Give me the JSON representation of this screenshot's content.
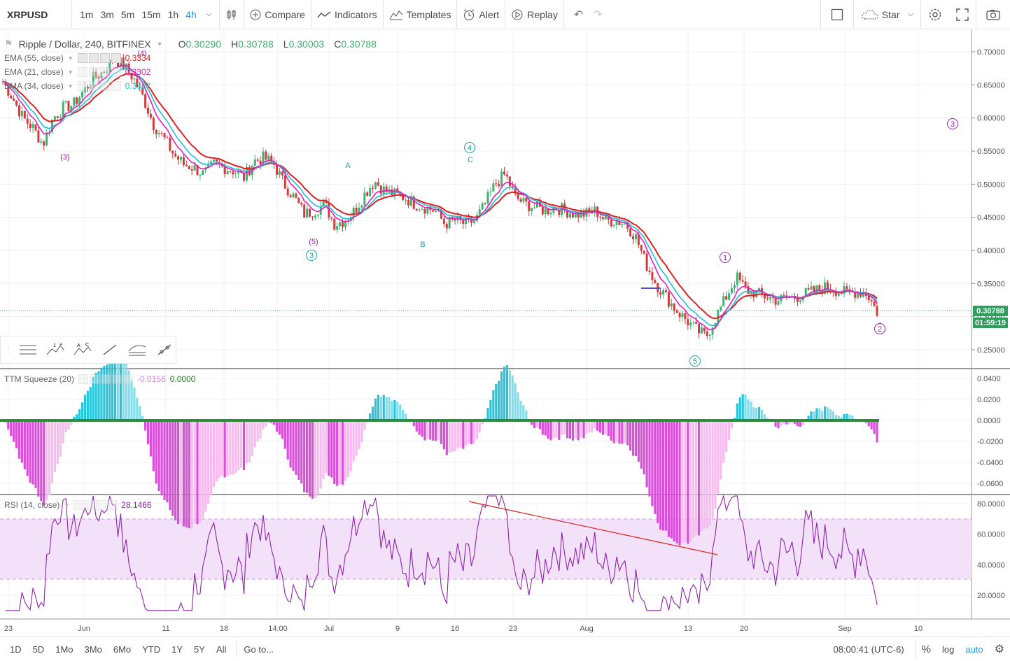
{
  "symbol": "XRPUSD",
  "intervals": [
    "1m",
    "3m",
    "5m",
    "15m",
    "1h",
    "4h"
  ],
  "active_interval": "4h",
  "toolbar": {
    "compare": "Compare",
    "indicators": "Indicators",
    "templates": "Templates",
    "alert": "Alert",
    "replay": "Replay",
    "star": "Star"
  },
  "legend": {
    "title": "Ripple / Dollar, 240, BITFINEX",
    "o_label": "O",
    "o": "0.30290",
    "h_label": "H",
    "h": "0.30788",
    "l_label": "L",
    "l": "0.30003",
    "c_label": "C",
    "c": "0.30788"
  },
  "ema": [
    {
      "label": "EMA (55, close)",
      "value": "0.3334",
      "color": "#e02020"
    },
    {
      "label": "EMA (21, close)",
      "value": "0.3302",
      "color": "#e020c0"
    },
    {
      "label": "EMA (34, close)",
      "value": "0.3327",
      "color": "#20c0d8"
    }
  ],
  "ttm": {
    "label": "TTM Squeeze (20)",
    "value1": "-0.0156",
    "value2": "0.0000"
  },
  "rsi": {
    "label": "RSI (14, close)",
    "value": "28.1466"
  },
  "price_axis": [
    "0.70000",
    "0.65000",
    "0.60000",
    "0.55000",
    "0.50000",
    "0.45000",
    "0.40000",
    "0.35000",
    "0.30000",
    "0.25000"
  ],
  "current_price": "0.30788",
  "countdown": "01:59:19",
  "ttm_axis": [
    "0.0400",
    "0.0200",
    "0.0000",
    "-0.0200",
    "-0.0400",
    "-0.0600"
  ],
  "rsi_axis": [
    "80.0000",
    "60.0000",
    "40.0000",
    "20.0000"
  ],
  "time_axis": [
    "23",
    "Jun",
    "11",
    "18",
    "14:00",
    "Jul",
    "9",
    "16",
    "23",
    "Aug",
    "13",
    "20",
    "Sep",
    "10"
  ],
  "wave_labels": [
    "(4)",
    "(3)",
    "(5)",
    "3",
    "A",
    "B",
    "4",
    "C",
    "5",
    "1",
    "2",
    "3"
  ],
  "bottom": {
    "ranges": [
      "1D",
      "5D",
      "1Mo",
      "3Mo",
      "6Mo",
      "YTD",
      "1Y",
      "5Y",
      "All"
    ],
    "goto": "Go to...",
    "time": "08:00:41 (UTC-6)",
    "pct": "%",
    "log": "log",
    "auto": "auto"
  },
  "colors": {
    "up": "#3cb371",
    "down": "#d23c3c",
    "ema55": "#e02020",
    "ema21": "#e020c0",
    "ema34": "#20c0d8",
    "rsi": "#8e24aa",
    "wave_cyan": "#1aa3a3",
    "wave_purple": "#9c1fa8"
  },
  "chart_data": {
    "type": "candlestick",
    "price_series_close": [
      0.655,
      0.63,
      0.6,
      0.585,
      0.56,
      0.6,
      0.615,
      0.62,
      0.64,
      0.66,
      0.67,
      0.69,
      0.68,
      0.66,
      0.63,
      0.59,
      0.57,
      0.545,
      0.53,
      0.525,
      0.515,
      0.53,
      0.525,
      0.52,
      0.51,
      0.535,
      0.54,
      0.53,
      0.5,
      0.48,
      0.455,
      0.46,
      0.47,
      0.44,
      0.445,
      0.46,
      0.485,
      0.505,
      0.49,
      0.485,
      0.48,
      0.47,
      0.465,
      0.46,
      0.44,
      0.445,
      0.44,
      0.445,
      0.47,
      0.5,
      0.515,
      0.48,
      0.47,
      0.465,
      0.46,
      0.465,
      0.46,
      0.455,
      0.455,
      0.46,
      0.445,
      0.445,
      0.44,
      0.42,
      0.38,
      0.35,
      0.33,
      0.31,
      0.295,
      0.28,
      0.27,
      0.3,
      0.33,
      0.36,
      0.34,
      0.335,
      0.33,
      0.325,
      0.328,
      0.33,
      0.335,
      0.34,
      0.345,
      0.34,
      0.335,
      0.338,
      0.335,
      0.307
    ]
  }
}
